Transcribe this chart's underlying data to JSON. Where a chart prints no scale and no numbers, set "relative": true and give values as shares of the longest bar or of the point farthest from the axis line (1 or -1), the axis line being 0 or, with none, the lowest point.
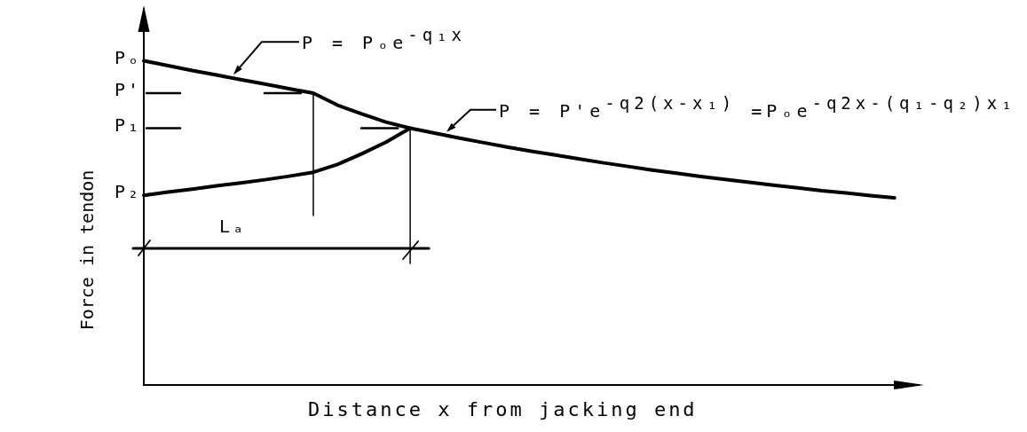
{
  "chart_data": {
    "type": "line",
    "relative": true,
    "marker": "none",
    "xlabel": "Distance x from jacking end",
    "ylabel": "Force in tendon",
    "categories": [
      null,
      null,
      null,
      null,
      null,
      null,
      null,
      null,
      null,
      null,
      null,
      null,
      null,
      null,
      null,
      null,
      null,
      null,
      null,
      null,
      null,
      null,
      null,
      null,
      null,
      null,
      null,
      null,
      null,
      null,
      null,
      null,
      null
    ],
    "series": [
      {
        "color": "#000000",
        "values": [
          1,
          0.985,
          0.97,
          0.956,
          0.942,
          0.928,
          0.914,
          0.9,
          0.863,
          0.836,
          0.811,
          0.792,
          0.777,
          0.762,
          0.748,
          0.734,
          0.721,
          0.709,
          0.697,
          0.685,
          0.674,
          0.663,
          0.653,
          0.643,
          0.634,
          0.625,
          0.616,
          0.608,
          0.599,
          0.592,
          0.584,
          0.577,
          null
        ]
      },
      {
        "color": "#000000",
        "values": [
          0.585,
          0.595,
          0.604,
          0.614,
          0.623,
          0.633,
          0.644,
          0.656,
          0.68,
          0.713,
          0.749,
          0.792,
          null,
          null,
          null,
          null,
          null,
          null,
          null,
          null,
          null,
          null,
          null,
          null,
          null,
          null,
          null,
          null,
          null,
          null,
          null,
          null,
          null
        ]
      }
    ],
    "annotations": [
      "P = Pₒe$^{-q₁x}$",
      "P = P'e$^{-q2(x-x₁)}$ =Pₒe$^{-q2x-(q₁-q₂)x₁}$",
      "Pₒ",
      "P'",
      "P₁",
      "P₂",
      "Lₐ"
    ]
  }
}
